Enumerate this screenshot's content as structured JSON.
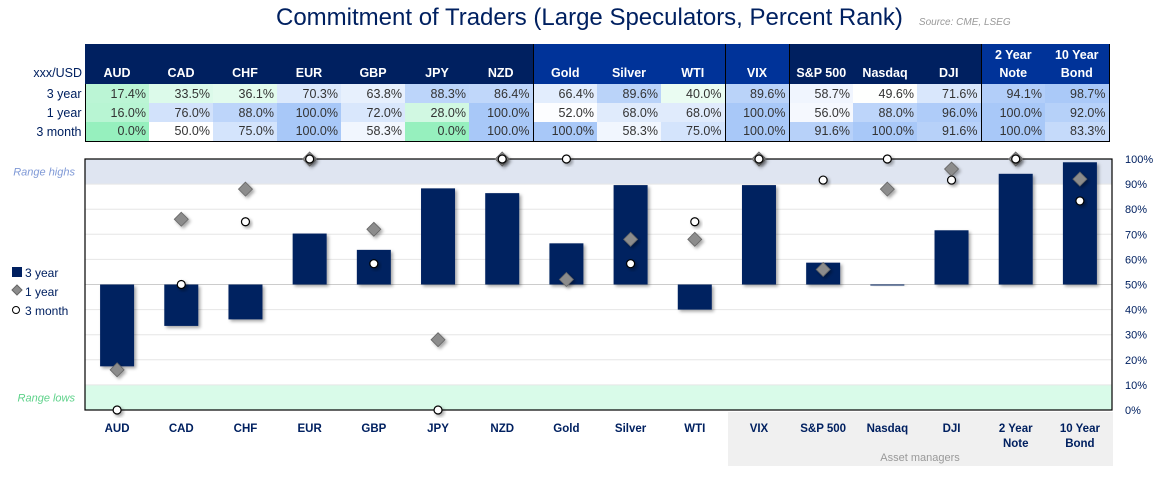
{
  "title": "Commitment of Traders (Large Speculators, Percent Rank)",
  "source": "Source: CME, LSEG",
  "table": {
    "corner": "xxx/USD",
    "columns": [
      "AUD",
      "CAD",
      "CHF",
      "EUR",
      "GBP",
      "JPY",
      "NZD",
      "Gold",
      "Silver",
      "WTI",
      "VIX",
      "S&P 500",
      "Nasdaq",
      "DJI",
      "2 Year Note",
      "10 Year Bond"
    ],
    "rows": [
      {
        "label": "3 year",
        "values": [
          "17.4%",
          "33.5%",
          "36.1%",
          "70.3%",
          "63.8%",
          "88.3%",
          "86.4%",
          "66.4%",
          "89.6%",
          "40.0%",
          "89.6%",
          "58.7%",
          "49.6%",
          "71.6%",
          "94.1%",
          "98.7%"
        ]
      },
      {
        "label": "1 year",
        "values": [
          "16.0%",
          "76.0%",
          "88.0%",
          "100.0%",
          "72.0%",
          "28.0%",
          "100.0%",
          "52.0%",
          "68.0%",
          "68.0%",
          "100.0%",
          "56.0%",
          "88.0%",
          "96.0%",
          "100.0%",
          "92.0%"
        ]
      },
      {
        "label": "3 month",
        "values": [
          "0.0%",
          "50.0%",
          "75.0%",
          "100.0%",
          "58.3%",
          "0.0%",
          "100.0%",
          "100.0%",
          "58.3%",
          "75.0%",
          "100.0%",
          "91.6%",
          "100.0%",
          "91.6%",
          "100.0%",
          "83.3%"
        ]
      }
    ]
  },
  "chart_data": {
    "type": "bar",
    "categories": [
      "AUD",
      "CAD",
      "CHF",
      "EUR",
      "GBP",
      "JPY",
      "NZD",
      "Gold",
      "Silver",
      "WTI",
      "VIX",
      "S&P 500",
      "Nasdaq",
      "DJI",
      "2 Year Note",
      "10 Year Bond"
    ],
    "baseline": 50,
    "series": [
      {
        "name": "3 year",
        "type": "bar",
        "values": [
          17.4,
          33.5,
          36.1,
          70.3,
          63.8,
          88.3,
          86.4,
          66.4,
          89.6,
          40.0,
          89.6,
          58.7,
          49.6,
          71.6,
          94.1,
          98.7
        ]
      },
      {
        "name": "1 year",
        "type": "scatter",
        "marker": "diamond",
        "values": [
          16,
          76,
          88,
          100,
          72,
          28,
          100,
          52,
          68,
          68,
          100,
          56,
          88,
          96,
          100,
          92
        ]
      },
      {
        "name": "3 month",
        "type": "scatter",
        "marker": "circle",
        "values": [
          0,
          50,
          75,
          100,
          58.3,
          0,
          100,
          100,
          58.3,
          75,
          100,
          91.6,
          100,
          91.6,
          100,
          83.3
        ]
      }
    ],
    "ylim": [
      0,
      100
    ],
    "yticks": [
      "0%",
      "10%",
      "20%",
      "30%",
      "40%",
      "50%",
      "60%",
      "70%",
      "80%",
      "90%",
      "100%"
    ],
    "bands": {
      "high_label": "Range highs",
      "low_label": "Range lows"
    },
    "group_label": "Asset managers",
    "legend": "left",
    "grid": true,
    "colors": {
      "bar": "#002060",
      "diamond": "#8c8c8c",
      "high_band": "#dfe5f1",
      "low_band": "#d9fbe9"
    }
  }
}
